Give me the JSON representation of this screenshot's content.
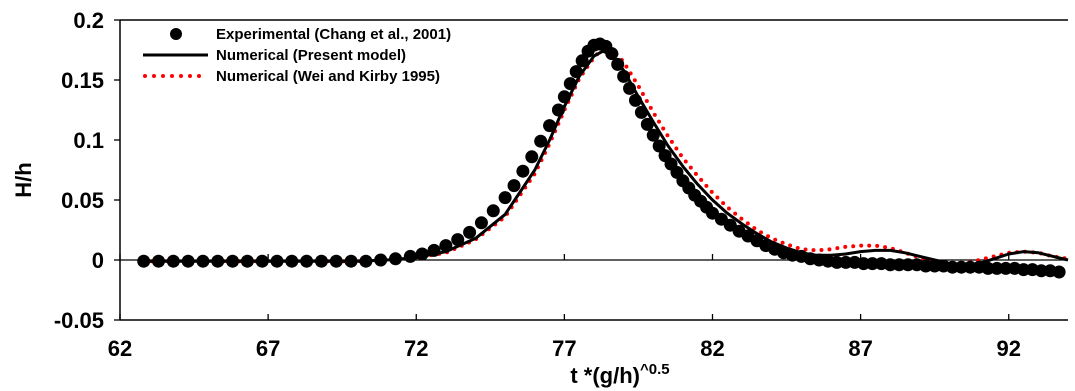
{
  "chart_data": {
    "type": "line",
    "xlabel": "t *(g/h)",
    "xlabel_exponent": "^0.5",
    "ylabel": "H/h",
    "xlim": [
      62,
      94
    ],
    "ylim": [
      -0.05,
      0.2
    ],
    "x_ticks": [
      62,
      67,
      72,
      77,
      82,
      87,
      92
    ],
    "x_tick_labels": [
      "62",
      "67",
      "72",
      "77",
      "82",
      "87",
      "92"
    ],
    "y_ticks": [
      -0.05,
      0,
      0.05,
      0.1,
      0.15,
      0.2
    ],
    "y_tick_labels": [
      "-0.05",
      "0",
      "0.05",
      "0.1",
      "0.15",
      "0.2"
    ],
    "grid": "vertical-tick-marks-only",
    "legend_position": "top-left",
    "series": [
      {
        "name": "Experimental (Chang et al., 2001)",
        "style": "markers",
        "color": "#000000",
        "x": [
          62.8,
          63.3,
          63.8,
          64.3,
          64.8,
          65.3,
          65.8,
          66.3,
          66.8,
          67.3,
          67.8,
          68.3,
          68.8,
          69.3,
          69.8,
          70.3,
          70.8,
          71.3,
          71.8,
          72.2,
          72.6,
          73.0,
          73.4,
          73.8,
          74.2,
          74.6,
          75.0,
          75.3,
          75.6,
          75.9,
          76.2,
          76.5,
          76.8,
          77.0,
          77.2,
          77.4,
          77.6,
          77.8,
          78.0,
          78.2,
          78.4,
          78.6,
          78.8,
          79.0,
          79.2,
          79.4,
          79.6,
          79.8,
          80.0,
          80.2,
          80.4,
          80.6,
          80.8,
          81.0,
          81.2,
          81.4,
          81.6,
          81.8,
          82.0,
          82.3,
          82.6,
          82.9,
          83.2,
          83.5,
          83.8,
          84.1,
          84.4,
          84.7,
          85.0,
          85.3,
          85.6,
          85.9,
          86.2,
          86.5,
          86.8,
          87.1,
          87.4,
          87.7,
          88.0,
          88.3,
          88.6,
          88.9,
          89.2,
          89.5,
          89.8,
          90.1,
          90.4,
          90.7,
          91.0,
          91.3,
          91.6,
          91.9,
          92.2,
          92.5,
          92.8,
          93.1,
          93.4,
          93.7
        ],
        "y": [
          -0.001,
          -0.001,
          -0.001,
          -0.001,
          -0.001,
          -0.001,
          -0.001,
          -0.001,
          -0.001,
          -0.001,
          -0.001,
          -0.001,
          -0.001,
          -0.001,
          -0.001,
          -0.001,
          0.0,
          0.001,
          0.003,
          0.005,
          0.008,
          0.012,
          0.017,
          0.023,
          0.031,
          0.041,
          0.052,
          0.062,
          0.074,
          0.086,
          0.099,
          0.112,
          0.125,
          0.136,
          0.147,
          0.157,
          0.166,
          0.174,
          0.179,
          0.18,
          0.178,
          0.172,
          0.163,
          0.153,
          0.143,
          0.133,
          0.123,
          0.113,
          0.104,
          0.095,
          0.087,
          0.08,
          0.073,
          0.066,
          0.06,
          0.054,
          0.049,
          0.044,
          0.039,
          0.034,
          0.029,
          0.024,
          0.02,
          0.016,
          0.012,
          0.009,
          0.006,
          0.004,
          0.003,
          0.001,
          0.0,
          -0.001,
          -0.002,
          -0.002,
          -0.002,
          -0.003,
          -0.003,
          -0.003,
          -0.004,
          -0.004,
          -0.004,
          -0.004,
          -0.005,
          -0.005,
          -0.005,
          -0.006,
          -0.006,
          -0.006,
          -0.006,
          -0.007,
          -0.007,
          -0.007,
          -0.007,
          -0.008,
          -0.008,
          -0.009,
          -0.009,
          -0.01
        ]
      },
      {
        "name": "Numerical (Present model)",
        "style": "solid",
        "color": "#000000",
        "x": [
          62.8,
          64,
          66,
          68,
          70,
          71,
          72,
          73,
          74,
          75,
          76,
          76.5,
          77,
          77.5,
          78,
          78.3,
          78.6,
          79,
          79.5,
          80,
          80.5,
          81,
          81.5,
          82,
          82.5,
          83,
          83.5,
          84,
          84.5,
          85,
          85.5,
          86,
          86.5,
          87,
          87.5,
          88,
          88.5,
          89,
          89.5,
          90,
          90.5,
          91,
          91.5,
          92,
          92.5,
          93,
          93.5,
          94
        ],
        "y": [
          -0.001,
          -0.001,
          -0.001,
          -0.001,
          -0.001,
          0.0,
          0.002,
          0.007,
          0.018,
          0.038,
          0.075,
          0.1,
          0.128,
          0.153,
          0.17,
          0.174,
          0.171,
          0.158,
          0.136,
          0.115,
          0.095,
          0.078,
          0.063,
          0.05,
          0.039,
          0.03,
          0.022,
          0.015,
          0.01,
          0.006,
          0.004,
          0.004,
          0.005,
          0.007,
          0.008,
          0.008,
          0.006,
          0.003,
          0.0,
          -0.003,
          -0.005,
          -0.003,
          0.001,
          0.005,
          0.007,
          0.006,
          0.003,
          0.0
        ]
      },
      {
        "name": "Numerical (Wei and Kirby 1995)",
        "style": "dotted",
        "color": "#ff0000",
        "x": [
          62.8,
          64,
          66,
          68,
          70,
          71,
          72,
          73,
          74,
          75,
          76,
          76.5,
          77,
          77.5,
          78,
          78.3,
          78.6,
          79,
          79.5,
          80,
          80.5,
          81,
          81.5,
          82,
          82.5,
          83,
          83.5,
          84,
          84.5,
          85,
          85.5,
          86,
          86.5,
          87,
          87.5,
          88,
          88.5,
          89,
          89.5,
          90,
          90.5,
          91,
          91.5,
          92,
          92.5,
          93,
          93.5,
          94
        ],
        "y": [
          -0.001,
          -0.001,
          -0.001,
          -0.001,
          -0.001,
          0.0,
          0.002,
          0.006,
          0.017,
          0.036,
          0.072,
          0.097,
          0.125,
          0.151,
          0.169,
          0.176,
          0.176,
          0.165,
          0.145,
          0.123,
          0.103,
          0.085,
          0.07,
          0.056,
          0.044,
          0.034,
          0.025,
          0.018,
          0.013,
          0.009,
          0.008,
          0.009,
          0.011,
          0.012,
          0.012,
          0.01,
          0.006,
          0.002,
          -0.002,
          -0.004,
          -0.003,
          0.0,
          0.003,
          0.006,
          0.007,
          0.006,
          0.003,
          0.001
        ]
      }
    ]
  }
}
